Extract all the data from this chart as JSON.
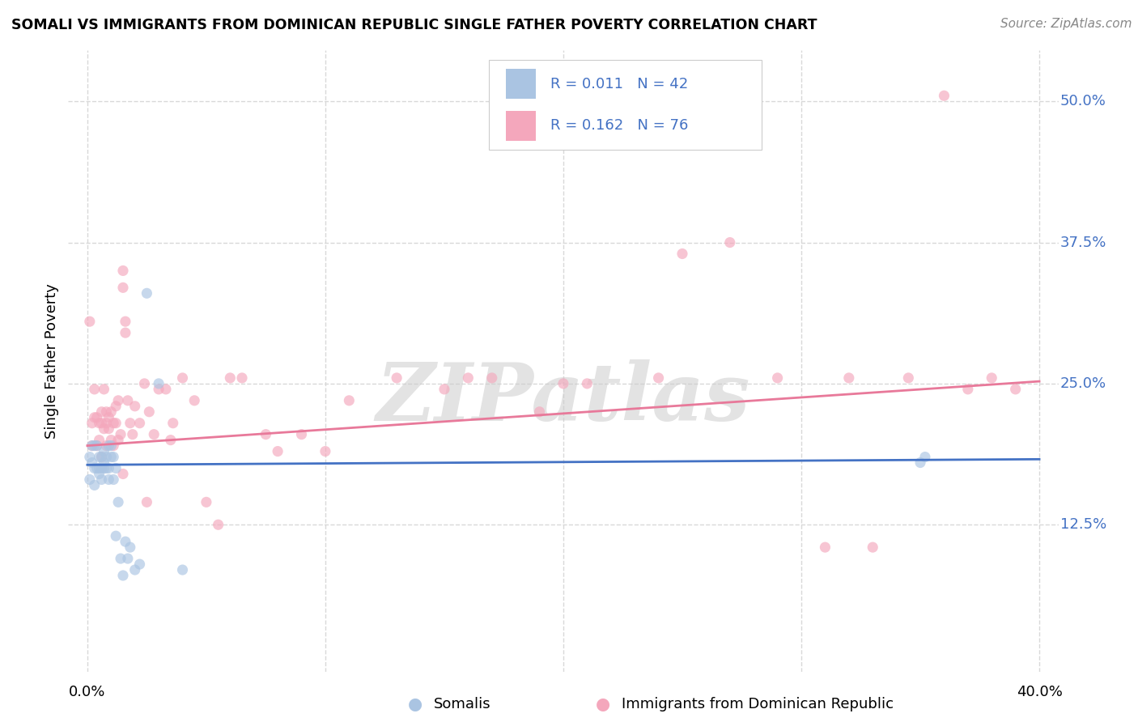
{
  "title": "SOMALI VS IMMIGRANTS FROM DOMINICAN REPUBLIC SINGLE FATHER POVERTY CORRELATION CHART",
  "source": "Source: ZipAtlas.com",
  "ylabel": "Single Father Poverty",
  "ytick_values": [
    0.125,
    0.25,
    0.375,
    0.5
  ],
  "ytick_labels": [
    "12.5%",
    "25.0%",
    "37.5%",
    "50.0%"
  ],
  "xlim": [
    0.0,
    0.4
  ],
  "ylim": [
    0.0,
    0.54
  ],
  "somali_color": "#aac4e2",
  "dr_color": "#f4a7bc",
  "regression_somali_color": "#4472c4",
  "regression_dr_color": "#e8799a",
  "legend_text_color": "#4472c4",
  "background_color": "#ffffff",
  "grid_color": "#d8d8d8",
  "watermark": "ZIPatlas",
  "marker_size": 90,
  "marker_alpha": 0.65,
  "somali_x": [
    0.001,
    0.001,
    0.002,
    0.002,
    0.003,
    0.003,
    0.003,
    0.004,
    0.004,
    0.005,
    0.005,
    0.005,
    0.006,
    0.006,
    0.006,
    0.007,
    0.007,
    0.007,
    0.008,
    0.008,
    0.009,
    0.009,
    0.009,
    0.01,
    0.01,
    0.011,
    0.011,
    0.012,
    0.012,
    0.013,
    0.014,
    0.015,
    0.016,
    0.017,
    0.018,
    0.02,
    0.022,
    0.025,
    0.03,
    0.04,
    0.35,
    0.352
  ],
  "somali_y": [
    0.185,
    0.165,
    0.18,
    0.195,
    0.175,
    0.16,
    0.195,
    0.175,
    0.195,
    0.17,
    0.185,
    0.175,
    0.185,
    0.175,
    0.165,
    0.19,
    0.18,
    0.175,
    0.185,
    0.175,
    0.195,
    0.175,
    0.165,
    0.185,
    0.195,
    0.165,
    0.185,
    0.115,
    0.175,
    0.145,
    0.095,
    0.08,
    0.11,
    0.095,
    0.105,
    0.085,
    0.09,
    0.33,
    0.25,
    0.085,
    0.18,
    0.185
  ],
  "dr_x": [
    0.001,
    0.002,
    0.002,
    0.003,
    0.003,
    0.004,
    0.004,
    0.005,
    0.005,
    0.006,
    0.006,
    0.006,
    0.007,
    0.007,
    0.008,
    0.008,
    0.008,
    0.009,
    0.009,
    0.01,
    0.01,
    0.011,
    0.011,
    0.012,
    0.012,
    0.013,
    0.013,
    0.014,
    0.015,
    0.015,
    0.016,
    0.016,
    0.017,
    0.018,
    0.019,
    0.02,
    0.022,
    0.024,
    0.026,
    0.028,
    0.03,
    0.033,
    0.036,
    0.04,
    0.045,
    0.05,
    0.06,
    0.065,
    0.075,
    0.09,
    0.11,
    0.13,
    0.15,
    0.17,
    0.19,
    0.21,
    0.24,
    0.25,
    0.27,
    0.29,
    0.31,
    0.32,
    0.33,
    0.345,
    0.36,
    0.37,
    0.38,
    0.39,
    0.015,
    0.025,
    0.035,
    0.055,
    0.08,
    0.1,
    0.16,
    0.2
  ],
  "dr_y": [
    0.305,
    0.215,
    0.195,
    0.22,
    0.245,
    0.195,
    0.22,
    0.215,
    0.2,
    0.225,
    0.185,
    0.215,
    0.245,
    0.21,
    0.215,
    0.195,
    0.225,
    0.21,
    0.22,
    0.2,
    0.225,
    0.215,
    0.195,
    0.215,
    0.23,
    0.235,
    0.2,
    0.205,
    0.335,
    0.35,
    0.295,
    0.305,
    0.235,
    0.215,
    0.205,
    0.23,
    0.215,
    0.25,
    0.225,
    0.205,
    0.245,
    0.245,
    0.215,
    0.255,
    0.235,
    0.145,
    0.255,
    0.255,
    0.205,
    0.205,
    0.235,
    0.255,
    0.245,
    0.255,
    0.225,
    0.25,
    0.255,
    0.365,
    0.375,
    0.255,
    0.105,
    0.255,
    0.105,
    0.255,
    0.505,
    0.245,
    0.255,
    0.245,
    0.17,
    0.145,
    0.2,
    0.125,
    0.19,
    0.19,
    0.255,
    0.25
  ]
}
